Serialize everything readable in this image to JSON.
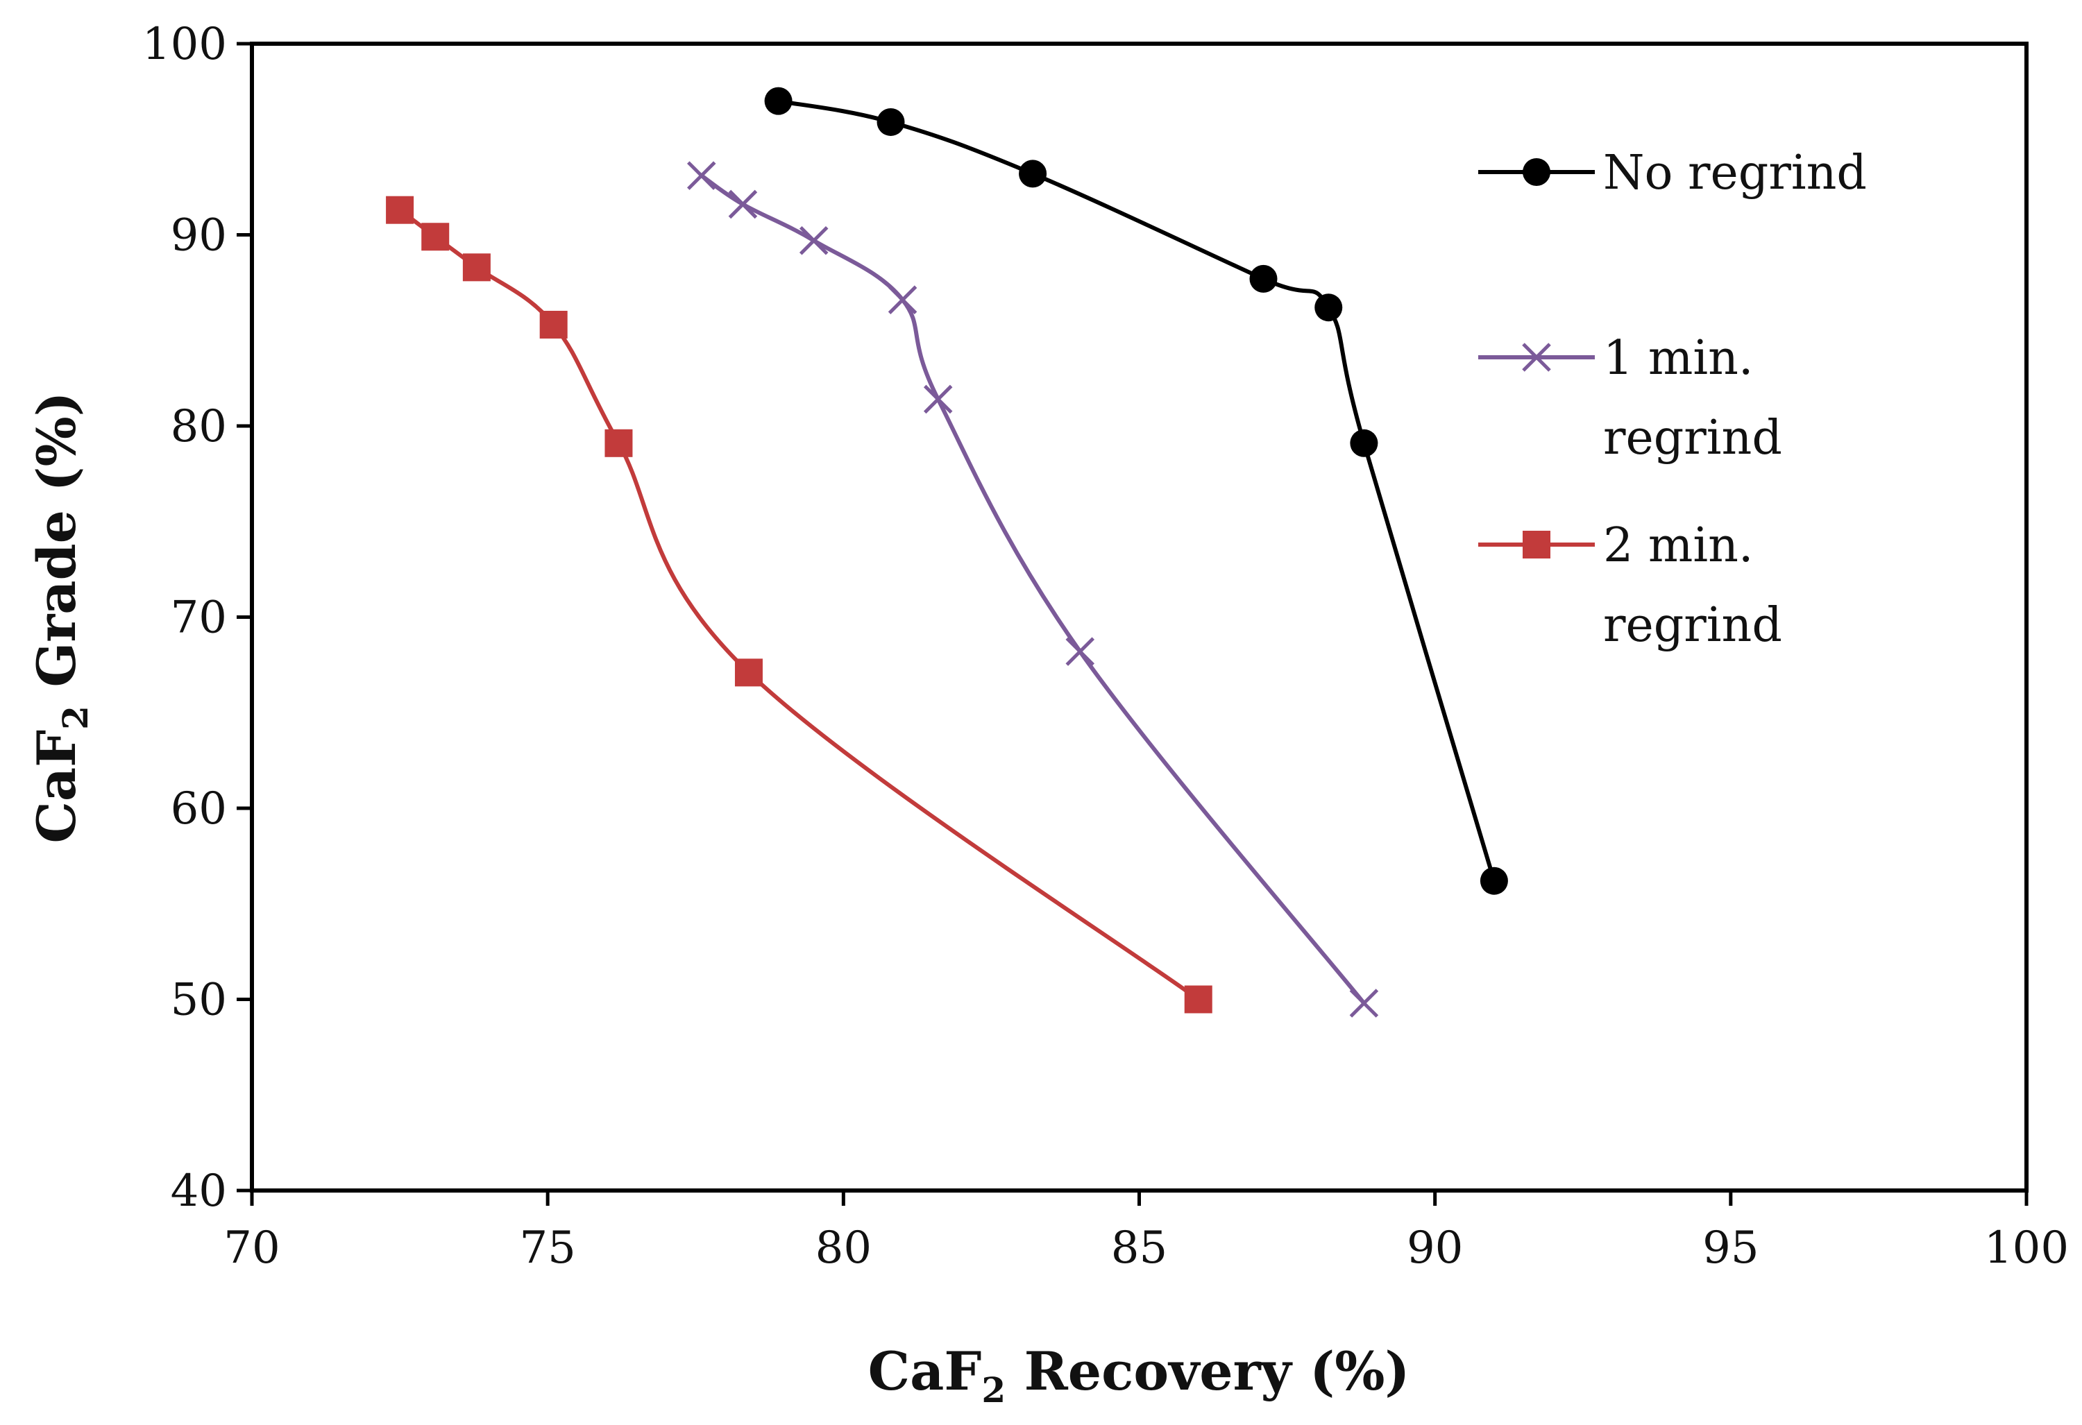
{
  "chart_data": {
    "type": "line",
    "title": "",
    "xlabel": {
      "main": "CaF",
      "sub": "2",
      "rest": " Recovery (%)"
    },
    "ylabel": {
      "main": "CaF",
      "sub": "2",
      "rest": " Grade (%)"
    },
    "xlim": [
      70,
      100
    ],
    "ylim": [
      40,
      100
    ],
    "x_ticks": [
      70,
      75,
      80,
      85,
      90,
      95,
      100
    ],
    "y_ticks": [
      40,
      50,
      60,
      70,
      80,
      90,
      100
    ],
    "grid": false,
    "legend_position": "right",
    "series": [
      {
        "name_lines": [
          "No regrind"
        ],
        "color": "#000000",
        "marker": "circle",
        "x": [
          78.9,
          80.8,
          83.2,
          87.1,
          88.2,
          88.8,
          91.0
        ],
        "y": [
          97.0,
          95.9,
          93.2,
          87.7,
          86.2,
          79.1,
          56.2
        ]
      },
      {
        "name_lines": [
          "1 min.",
          "regrind"
        ],
        "color": "#7B5A99",
        "marker": "x",
        "x": [
          77.6,
          78.3,
          79.5,
          81.0,
          81.6,
          84.0,
          88.8
        ],
        "y": [
          93.1,
          91.6,
          89.7,
          86.6,
          81.4,
          68.2,
          49.8
        ]
      },
      {
        "name_lines": [
          "2 min.",
          "regrind"
        ],
        "color": "#C23B3B",
        "marker": "square",
        "x": [
          72.5,
          73.1,
          73.8,
          75.1,
          76.2,
          78.4,
          86.0
        ],
        "y": [
          91.3,
          89.9,
          88.3,
          85.3,
          79.1,
          67.1,
          50.0
        ]
      }
    ]
  }
}
